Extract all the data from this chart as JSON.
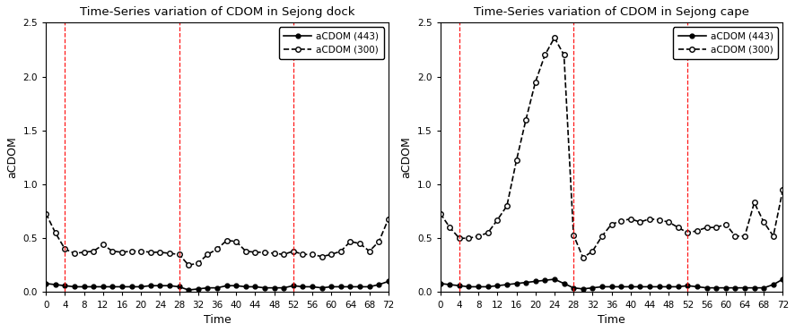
{
  "titles": [
    "Time-Series variation of CDOM in Sejong dock",
    "Time-Series variation of CDOM in Sejong cape"
  ],
  "xlabel": "Time",
  "ylabel": "aCDOM",
  "xlim": [
    0,
    72
  ],
  "ylim": [
    0,
    2.5
  ],
  "xticks": [
    0,
    4,
    8,
    12,
    16,
    20,
    24,
    28,
    32,
    36,
    40,
    44,
    48,
    52,
    56,
    60,
    64,
    68,
    72
  ],
  "yticks": [
    0.0,
    0.5,
    1.0,
    1.5,
    2.0,
    2.5
  ],
  "vlines": [
    4,
    28,
    52
  ],
  "legend_443": "aCDOM (443)",
  "legend_300": "aCDOM (300)",
  "dock_x": [
    0,
    2,
    4,
    6,
    8,
    10,
    12,
    14,
    16,
    18,
    20,
    22,
    24,
    26,
    28,
    30,
    32,
    34,
    36,
    38,
    40,
    42,
    44,
    46,
    48,
    50,
    52,
    54,
    56,
    58,
    60,
    62,
    64,
    66,
    68,
    70,
    72
  ],
  "dock_443": [
    0.08,
    0.07,
    0.06,
    0.05,
    0.05,
    0.05,
    0.05,
    0.05,
    0.05,
    0.05,
    0.05,
    0.06,
    0.06,
    0.06,
    0.05,
    0.02,
    0.03,
    0.04,
    0.04,
    0.06,
    0.06,
    0.05,
    0.05,
    0.04,
    0.04,
    0.04,
    0.06,
    0.05,
    0.05,
    0.04,
    0.05,
    0.05,
    0.05,
    0.05,
    0.05,
    0.07,
    0.1
  ],
  "dock_300": [
    0.73,
    0.55,
    0.4,
    0.36,
    0.37,
    0.38,
    0.44,
    0.38,
    0.37,
    0.38,
    0.38,
    0.37,
    0.37,
    0.36,
    0.35,
    0.25,
    0.27,
    0.35,
    0.4,
    0.48,
    0.47,
    0.38,
    0.37,
    0.37,
    0.36,
    0.35,
    0.38,
    0.35,
    0.35,
    0.33,
    0.35,
    0.38,
    0.47,
    0.45,
    0.38,
    0.47,
    0.68
  ],
  "cape_x": [
    0,
    2,
    4,
    6,
    8,
    10,
    12,
    14,
    16,
    18,
    20,
    22,
    24,
    26,
    28,
    30,
    32,
    34,
    36,
    38,
    40,
    42,
    44,
    46,
    48,
    50,
    52,
    54,
    56,
    58,
    60,
    62,
    64,
    66,
    68,
    70,
    72
  ],
  "cape_443": [
    0.08,
    0.07,
    0.06,
    0.05,
    0.05,
    0.05,
    0.06,
    0.07,
    0.08,
    0.09,
    0.1,
    0.11,
    0.12,
    0.08,
    0.04,
    0.03,
    0.04,
    0.05,
    0.05,
    0.05,
    0.05,
    0.05,
    0.05,
    0.05,
    0.05,
    0.05,
    0.06,
    0.05,
    0.04,
    0.04,
    0.04,
    0.04,
    0.04,
    0.04,
    0.04,
    0.07,
    0.12
  ],
  "cape_300": [
    0.73,
    0.6,
    0.5,
    0.5,
    0.52,
    0.55,
    0.67,
    0.8,
    1.22,
    1.6,
    1.95,
    2.2,
    2.36,
    2.2,
    0.53,
    0.32,
    0.38,
    0.52,
    0.63,
    0.66,
    0.68,
    0.65,
    0.68,
    0.67,
    0.65,
    0.6,
    0.55,
    0.57,
    0.6,
    0.6,
    0.63,
    0.52,
    0.52,
    0.83,
    0.65,
    0.52,
    0.95
  ]
}
